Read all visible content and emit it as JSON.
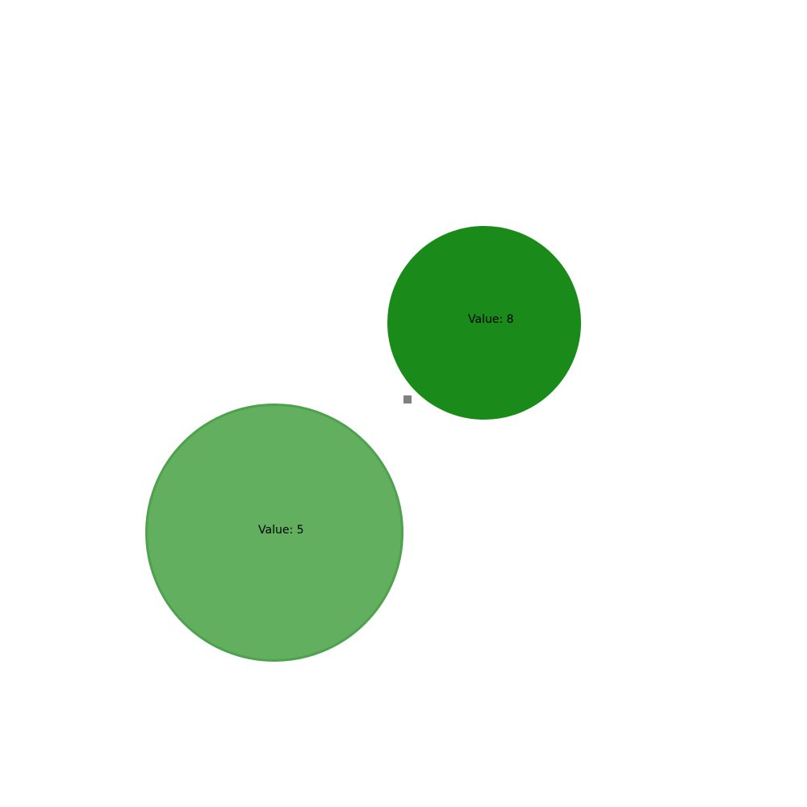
{
  "bubbles": [
    {
      "label": "Value: 8",
      "value": 8,
      "color": "#1a8a1a"
    },
    {
      "label": "Value: 5",
      "value": 5,
      "color": "#61af5f"
    }
  ],
  "handle": {
    "icon": "square-handle-icon",
    "color": "#808080"
  }
}
